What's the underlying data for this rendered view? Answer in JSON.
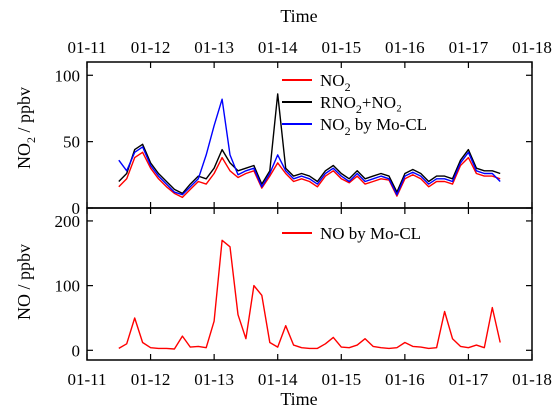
{
  "chart_data": [
    {
      "type": "line",
      "panel": "top",
      "xlabel": "Time",
      "ylabel": "NO",
      "ylabel_sub": "2",
      "ylabel_unit": " / ppbv",
      "x_ticks": [
        "01-11",
        "01-12",
        "01-13",
        "01-14",
        "01-15",
        "01-16",
        "01-17",
        "01-18"
      ],
      "xlim": [
        "01-11",
        "01-18"
      ],
      "ylim": [
        0,
        110
      ],
      "y_ticks": [
        0,
        50,
        100
      ],
      "legend_position": "top-right",
      "series": [
        {
          "name": "NO",
          "name_sub": "2",
          "name_tail": "",
          "color": "#ff0000",
          "x": [
            "01-11 12:00",
            "01-11 15:00",
            "01-11 18:00",
            "01-11 21:00",
            "01-12 00:00",
            "01-12 03:00",
            "01-12 06:00",
            "01-12 09:00",
            "01-12 12:00",
            "01-12 15:00",
            "01-12 18:00",
            "01-12 21:00",
            "01-13 00:00",
            "01-13 03:00",
            "01-13 06:00",
            "01-13 09:00",
            "01-13 12:00",
            "01-13 15:00",
            "01-13 18:00",
            "01-13 21:00",
            "01-14 00:00",
            "01-14 03:00",
            "01-14 06:00",
            "01-14 09:00",
            "01-14 12:00",
            "01-14 15:00",
            "01-14 18:00",
            "01-14 21:00",
            "01-15 00:00",
            "01-15 03:00",
            "01-15 06:00",
            "01-15 09:00",
            "01-15 12:00",
            "01-15 15:00",
            "01-15 18:00",
            "01-15 21:00",
            "01-16 00:00",
            "01-16 03:00",
            "01-16 06:00",
            "01-16 09:00",
            "01-16 12:00",
            "01-16 15:00",
            "01-16 18:00",
            "01-16 21:00",
            "01-17 00:00",
            "01-17 03:00",
            "01-17 06:00",
            "01-17 09:00",
            "01-17 12:00"
          ],
          "values": [
            16,
            22,
            38,
            42,
            30,
            22,
            16,
            11,
            8,
            14,
            20,
            18,
            26,
            38,
            28,
            23,
            26,
            28,
            15,
            24,
            34,
            26,
            20,
            22,
            20,
            16,
            24,
            28,
            22,
            19,
            24,
            18,
            20,
            22,
            21,
            9,
            22,
            25,
            22,
            16,
            20,
            20,
            18,
            32,
            38,
            26,
            24,
            24,
            22
          ]
        },
        {
          "name": "RNO",
          "name_sub": "2",
          "name_tail": "+NO₂",
          "color": "#000000",
          "x": [
            "01-11 12:00",
            "01-11 15:00",
            "01-11 18:00",
            "01-11 21:00",
            "01-12 00:00",
            "01-12 03:00",
            "01-12 06:00",
            "01-12 09:00",
            "01-12 12:00",
            "01-12 15:00",
            "01-12 18:00",
            "01-12 21:00",
            "01-13 00:00",
            "01-13 03:00",
            "01-13 06:00",
            "01-13 09:00",
            "01-13 12:00",
            "01-13 15:00",
            "01-13 18:00",
            "01-13 21:00",
            "01-14 00:00",
            "01-14 03:00",
            "01-14 06:00",
            "01-14 09:00",
            "01-14 12:00",
            "01-14 15:00",
            "01-14 18:00",
            "01-14 21:00",
            "01-15 00:00",
            "01-15 03:00",
            "01-15 06:00",
            "01-15 09:00",
            "01-15 12:00",
            "01-15 15:00",
            "01-15 18:00",
            "01-15 21:00",
            "01-16 00:00",
            "01-16 03:00",
            "01-16 06:00",
            "01-16 09:00",
            "01-16 12:00",
            "01-16 15:00",
            "01-16 18:00",
            "01-16 21:00",
            "01-17 00:00",
            "01-17 03:00",
            "01-17 06:00",
            "01-17 09:00",
            "01-17 12:00"
          ],
          "values": [
            20,
            26,
            44,
            48,
            34,
            26,
            20,
            14,
            11,
            18,
            24,
            22,
            30,
            44,
            34,
            28,
            30,
            32,
            18,
            28,
            86,
            30,
            24,
            26,
            24,
            20,
            28,
            32,
            26,
            22,
            28,
            22,
            24,
            26,
            24,
            12,
            26,
            29,
            26,
            20,
            24,
            24,
            22,
            36,
            44,
            30,
            28,
            28,
            26
          ]
        },
        {
          "name": "NO",
          "name_sub": "2",
          "name_tail": " by Mo-CL",
          "color": "#0000ff",
          "x": [
            "01-11 12:00",
            "01-11 15:00",
            "01-11 18:00",
            "01-11 21:00",
            "01-12 00:00",
            "01-12 03:00",
            "01-12 06:00",
            "01-12 09:00",
            "01-12 12:00",
            "01-12 15:00",
            "01-12 18:00",
            "01-12 21:00",
            "01-13 00:00",
            "01-13 03:00",
            "01-13 06:00",
            "01-13 09:00",
            "01-13 12:00",
            "01-13 15:00",
            "01-13 18:00",
            "01-13 21:00",
            "01-14 00:00",
            "01-14 03:00",
            "01-14 06:00",
            "01-14 09:00",
            "01-14 12:00",
            "01-14 15:00",
            "01-14 18:00",
            "01-14 21:00",
            "01-15 00:00",
            "01-15 03:00",
            "01-15 06:00",
            "01-15 09:00",
            "01-15 12:00",
            "01-15 15:00",
            "01-15 18:00",
            "01-15 21:00",
            "01-16 00:00",
            "01-16 03:00",
            "01-16 06:00",
            "01-16 09:00",
            "01-16 12:00",
            "01-16 15:00",
            "01-16 18:00",
            "01-16 21:00",
            "01-17 00:00",
            "01-17 03:00",
            "01-17 06:00",
            "01-17 09:00",
            "01-17 12:00"
          ],
          "values": [
            36,
            28,
            42,
            46,
            32,
            24,
            18,
            12,
            10,
            16,
            22,
            40,
            62,
            82,
            40,
            25,
            28,
            30,
            16,
            26,
            40,
            28,
            22,
            24,
            22,
            18,
            26,
            30,
            24,
            20,
            26,
            20,
            22,
            24,
            22,
            10,
            24,
            27,
            24,
            18,
            22,
            22,
            20,
            34,
            42,
            28,
            26,
            26,
            20
          ]
        }
      ]
    },
    {
      "type": "line",
      "panel": "bottom",
      "xlabel": "Time",
      "ylabel": "NO / ppbv",
      "x_ticks": [
        "01-11",
        "01-12",
        "01-13",
        "01-14",
        "01-15",
        "01-16",
        "01-17",
        "01-18"
      ],
      "xlim": [
        "01-11",
        "01-18"
      ],
      "ylim": [
        -15,
        220
      ],
      "y_ticks": [
        0,
        100,
        200
      ],
      "legend_position": "top-right",
      "series": [
        {
          "name": "NO by Mo-CL",
          "color": "#ff0000",
          "x": [
            "01-11 12:00",
            "01-11 15:00",
            "01-11 18:00",
            "01-11 21:00",
            "01-12 00:00",
            "01-12 03:00",
            "01-12 06:00",
            "01-12 09:00",
            "01-12 12:00",
            "01-12 15:00",
            "01-12 18:00",
            "01-12 21:00",
            "01-13 00:00",
            "01-13 03:00",
            "01-13 06:00",
            "01-13 09:00",
            "01-13 12:00",
            "01-13 15:00",
            "01-13 18:00",
            "01-13 21:00",
            "01-14 00:00",
            "01-14 03:00",
            "01-14 06:00",
            "01-14 09:00",
            "01-14 12:00",
            "01-14 15:00",
            "01-14 18:00",
            "01-14 21:00",
            "01-15 00:00",
            "01-15 03:00",
            "01-15 06:00",
            "01-15 09:00",
            "01-15 12:00",
            "01-15 15:00",
            "01-15 18:00",
            "01-15 21:00",
            "01-16 00:00",
            "01-16 03:00",
            "01-16 06:00",
            "01-16 09:00",
            "01-16 12:00",
            "01-16 15:00",
            "01-16 18:00",
            "01-16 21:00",
            "01-17 00:00",
            "01-17 03:00",
            "01-17 06:00",
            "01-17 09:00",
            "01-17 12:00"
          ],
          "values": [
            3,
            10,
            50,
            12,
            4,
            3,
            3,
            2,
            22,
            5,
            6,
            4,
            45,
            170,
            160,
            55,
            18,
            100,
            85,
            12,
            5,
            38,
            8,
            4,
            3,
            3,
            10,
            20,
            5,
            4,
            8,
            18,
            6,
            4,
            3,
            4,
            12,
            6,
            5,
            3,
            4,
            60,
            18,
            6,
            4,
            8,
            4,
            66,
            12
          ]
        }
      ]
    }
  ]
}
